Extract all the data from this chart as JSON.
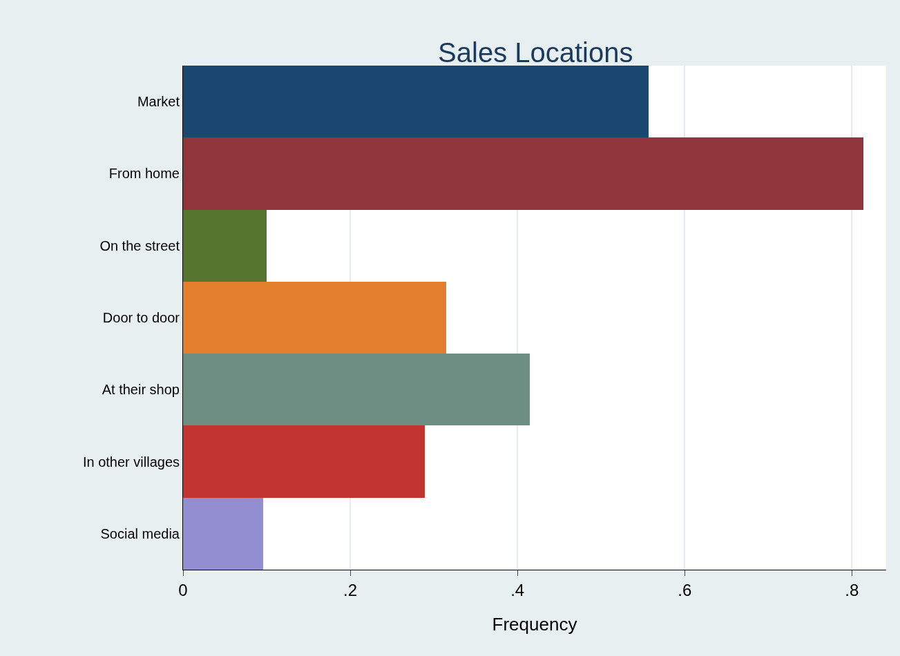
{
  "chart_data": {
    "type": "bar",
    "orientation": "horizontal",
    "title": "Sales Locations",
    "xlabel": "Frequency",
    "categories": [
      "Market",
      "From home",
      "On the street",
      "Door to door",
      "At their shop",
      "In other villages",
      "Social media"
    ],
    "values": [
      0.557,
      0.814,
      0.1,
      0.315,
      0.415,
      0.289,
      0.096
    ],
    "colors": [
      "#1a476f",
      "#90353b",
      "#55752f",
      "#e37e2e",
      "#6e8e84",
      "#c23430",
      "#938dd2"
    ],
    "xlim": [
      0,
      0.841
    ],
    "xticks": [
      0,
      {
        "value": 0.2,
        "label": ".2"
      },
      {
        "value": 0.4,
        "label": ".4"
      },
      {
        "value": 0.6,
        "label": ".6"
      },
      {
        "value": 0.8,
        "label": ".8"
      }
    ],
    "grid": "x"
  }
}
